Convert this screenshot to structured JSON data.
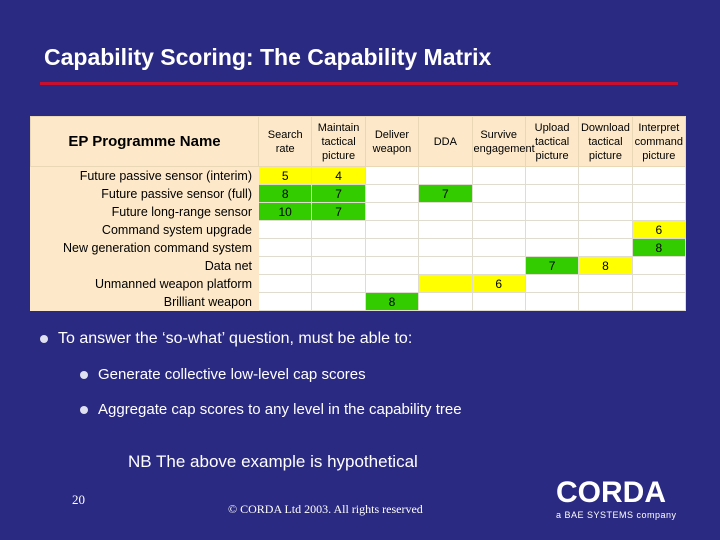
{
  "slide": {
    "title": "Capability Scoring: The Capability Matrix",
    "page_number": "20",
    "copyright": "© CORDA Ltd 2003. All rights reserved",
    "note": "NB The above example is hypothetical"
  },
  "matrix": {
    "name_header": "EP Programme Name",
    "columns": [
      "Search rate",
      "Maintain tactical picture",
      "Deliver weapon",
      "DDA",
      "Survive engagement",
      "Upload tactical picture",
      "Download tactical picture",
      "Interpret command picture"
    ],
    "rows": [
      {
        "name": "Future passive sensor (interim)",
        "cells": [
          "5",
          "4",
          "",
          "",
          "",
          "",
          "",
          ""
        ],
        "colors": [
          "yellow",
          "yellow",
          "",
          "",
          "",
          "",
          "",
          ""
        ]
      },
      {
        "name": "Future passive sensor (full)",
        "cells": [
          "8",
          "7",
          "",
          "7",
          "",
          "",
          "",
          ""
        ],
        "colors": [
          "green",
          "green",
          "",
          "green",
          "",
          "",
          "",
          ""
        ]
      },
      {
        "name": "Future long-range sensor",
        "cells": [
          "10",
          "7",
          "",
          "",
          "",
          "",
          "",
          ""
        ],
        "colors": [
          "green",
          "green",
          "",
          "",
          "",
          "",
          "",
          ""
        ]
      },
      {
        "name": "Command system upgrade",
        "cells": [
          "",
          "",
          "",
          "",
          "",
          "",
          "",
          "6"
        ],
        "colors": [
          "",
          "",
          "",
          "",
          "",
          "",
          "",
          "yellow"
        ]
      },
      {
        "name": "New generation command system",
        "cells": [
          "",
          "",
          "",
          "",
          "",
          "",
          "",
          "8"
        ],
        "colors": [
          "",
          "",
          "",
          "",
          "",
          "",
          "",
          "green"
        ]
      },
      {
        "name": "Data net",
        "cells": [
          "",
          "",
          "",
          "",
          "",
          "7",
          "8",
          ""
        ],
        "colors": [
          "",
          "",
          "",
          "",
          "",
          "green",
          "yellow",
          ""
        ]
      },
      {
        "name": "Unmanned weapon platform",
        "cells": [
          "",
          "",
          "",
          "",
          "6",
          "",
          "",
          ""
        ],
        "colors": [
          "",
          "",
          "",
          "yellow",
          "yellow",
          "",
          "",
          ""
        ]
      },
      {
        "name": "Brilliant weapon",
        "cells": [
          "",
          "",
          "8",
          "",
          "",
          "",
          "",
          ""
        ],
        "colors": [
          "",
          "",
          "green",
          "",
          "",
          "",
          "",
          ""
        ]
      }
    ]
  },
  "bullets": {
    "main": "To answer the ‘so-what’ question, must be able to:",
    "sub": [
      "Generate collective low-level cap scores",
      "Aggregate cap scores to any level in the capability tree"
    ]
  },
  "logo": {
    "word": "CORDA",
    "tagline": "a BAE SYSTEMS company"
  }
}
